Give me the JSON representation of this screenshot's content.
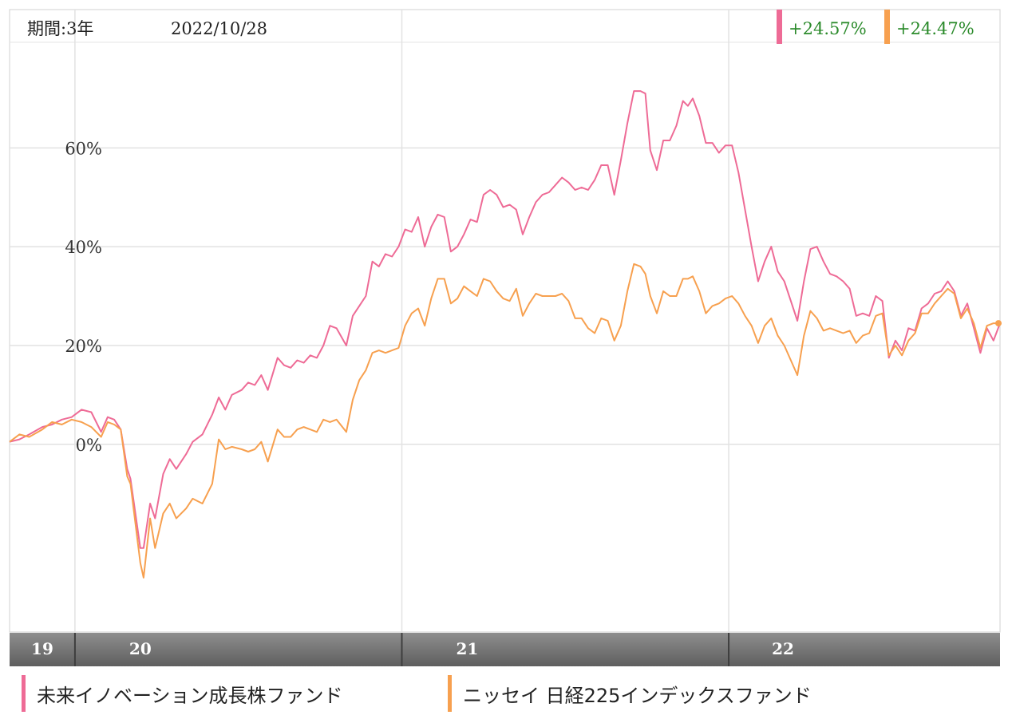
{
  "header": {
    "period": "期間:3年",
    "date": "2022/10/28",
    "returns": [
      {
        "label": "+24.57%",
        "swatch": "#ee6b96"
      },
      {
        "label": "+24.47%",
        "swatch": "#f7a04f"
      }
    ],
    "return_text_color": "#2a8a2a"
  },
  "legend": [
    {
      "label": "未来イノベーション成長株ファンド",
      "color": "#ee6b96"
    },
    {
      "label": "ニッセイ 日経225インデックスファンド",
      "color": "#f7a04f"
    }
  ],
  "chart_data": {
    "type": "line",
    "yticks": [
      {
        "value": 60,
        "label": "60%"
      },
      {
        "value": 40,
        "label": "40%"
      },
      {
        "value": 20,
        "label": "20%"
      },
      {
        "value": 0,
        "label": "0%"
      }
    ],
    "ylim": [
      -38,
      88
    ],
    "xlim": [
      2019.8,
      2022.83
    ],
    "xbands": [
      {
        "label": "19",
        "start": 2019.8,
        "end": 2020.0
      },
      {
        "label": "20",
        "start": 2020.0,
        "end": 2021.0
      },
      {
        "label": "21",
        "start": 2021.0,
        "end": 2022.0
      },
      {
        "label": "22",
        "start": 2022.0,
        "end": 2022.83
      }
    ],
    "grid": true,
    "series": [
      {
        "color": "#ee6b96",
        "points": [
          [
            2019.8,
            0.5
          ],
          [
            2019.83,
            1.0
          ],
          [
            2019.86,
            2.0
          ],
          [
            2019.9,
            3.5
          ],
          [
            2019.93,
            4.0
          ],
          [
            2019.96,
            5.0
          ],
          [
            2019.99,
            5.5
          ],
          [
            2020.02,
            7.0
          ],
          [
            2020.05,
            6.5
          ],
          [
            2020.08,
            2.5
          ],
          [
            2020.1,
            5.5
          ],
          [
            2020.12,
            5.0
          ],
          [
            2020.14,
            3.0
          ],
          [
            2020.16,
            -5.0
          ],
          [
            2020.17,
            -7.0
          ],
          [
            2020.2,
            -21.0
          ],
          [
            2020.21,
            -21.0
          ],
          [
            2020.23,
            -12.0
          ],
          [
            2020.245,
            -15.0
          ],
          [
            2020.27,
            -6.0
          ],
          [
            2020.29,
            -3.0
          ],
          [
            2020.31,
            -5.0
          ],
          [
            2020.34,
            -2.0
          ],
          [
            2020.36,
            0.5
          ],
          [
            2020.39,
            2.0
          ],
          [
            2020.42,
            6.0
          ],
          [
            2020.44,
            9.5
          ],
          [
            2020.46,
            7.0
          ],
          [
            2020.48,
            10.0
          ],
          [
            2020.51,
            11.0
          ],
          [
            2020.53,
            12.5
          ],
          [
            2020.55,
            12.0
          ],
          [
            2020.57,
            14.0
          ],
          [
            2020.59,
            11.0
          ],
          [
            2020.62,
            17.5
          ],
          [
            2020.64,
            16.0
          ],
          [
            2020.66,
            15.5
          ],
          [
            2020.68,
            17.0
          ],
          [
            2020.7,
            16.5
          ],
          [
            2020.72,
            18.0
          ],
          [
            2020.74,
            17.5
          ],
          [
            2020.76,
            20.0
          ],
          [
            2020.78,
            24.0
          ],
          [
            2020.8,
            23.5
          ],
          [
            2020.83,
            20.0
          ],
          [
            2020.85,
            26.0
          ],
          [
            2020.87,
            28.0
          ],
          [
            2020.89,
            30.0
          ],
          [
            2020.91,
            37.0
          ],
          [
            2020.93,
            36.0
          ],
          [
            2020.95,
            38.5
          ],
          [
            2020.97,
            38.0
          ],
          [
            2020.99,
            40.0
          ],
          [
            2021.01,
            43.5
          ],
          [
            2021.03,
            43.0
          ],
          [
            2021.05,
            46.0
          ],
          [
            2021.07,
            40.0
          ],
          [
            2021.09,
            44.0
          ],
          [
            2021.11,
            46.5
          ],
          [
            2021.13,
            46.0
          ],
          [
            2021.15,
            39.0
          ],
          [
            2021.17,
            40.0
          ],
          [
            2021.19,
            42.5
          ],
          [
            2021.21,
            45.5
          ],
          [
            2021.23,
            45.0
          ],
          [
            2021.25,
            50.5
          ],
          [
            2021.27,
            51.5
          ],
          [
            2021.29,
            50.5
          ],
          [
            2021.31,
            48.0
          ],
          [
            2021.33,
            48.5
          ],
          [
            2021.35,
            47.5
          ],
          [
            2021.37,
            42.5
          ],
          [
            2021.39,
            46.0
          ],
          [
            2021.41,
            49.0
          ],
          [
            2021.43,
            50.5
          ],
          [
            2021.45,
            51.0
          ],
          [
            2021.47,
            52.5
          ],
          [
            2021.49,
            54.0
          ],
          [
            2021.51,
            53.0
          ],
          [
            2021.53,
            51.5
          ],
          [
            2021.55,
            52.0
          ],
          [
            2021.57,
            51.5
          ],
          [
            2021.59,
            53.5
          ],
          [
            2021.61,
            56.5
          ],
          [
            2021.63,
            56.5
          ],
          [
            2021.65,
            50.5
          ],
          [
            2021.67,
            57.5
          ],
          [
            2021.69,
            65.0
          ],
          [
            2021.71,
            71.5
          ],
          [
            2021.73,
            71.5
          ],
          [
            2021.745,
            71.0
          ],
          [
            2021.76,
            59.5
          ],
          [
            2021.78,
            55.5
          ],
          [
            2021.8,
            61.5
          ],
          [
            2021.82,
            61.5
          ],
          [
            2021.84,
            64.5
          ],
          [
            2021.86,
            69.5
          ],
          [
            2021.875,
            68.5
          ],
          [
            2021.89,
            70.0
          ],
          [
            2021.91,
            66.5
          ],
          [
            2021.93,
            61.0
          ],
          [
            2021.95,
            61.0
          ],
          [
            2021.97,
            59.0
          ],
          [
            2021.99,
            60.5
          ],
          [
            2022.01,
            60.5
          ],
          [
            2022.03,
            55.0
          ],
          [
            2022.05,
            47.5
          ],
          [
            2022.07,
            40.0
          ],
          [
            2022.09,
            33.0
          ],
          [
            2022.11,
            37.0
          ],
          [
            2022.13,
            40.0
          ],
          [
            2022.15,
            35.0
          ],
          [
            2022.17,
            33.0
          ],
          [
            2022.19,
            29.0
          ],
          [
            2022.21,
            25.0
          ],
          [
            2022.23,
            33.0
          ],
          [
            2022.25,
            39.5
          ],
          [
            2022.27,
            40.0
          ],
          [
            2022.29,
            37.0
          ],
          [
            2022.31,
            34.5
          ],
          [
            2022.33,
            34.0
          ],
          [
            2022.35,
            33.0
          ],
          [
            2022.37,
            31.5
          ],
          [
            2022.39,
            26.0
          ],
          [
            2022.41,
            26.5
          ],
          [
            2022.43,
            26.0
          ],
          [
            2022.45,
            30.0
          ],
          [
            2022.47,
            29.0
          ],
          [
            2022.49,
            17.5
          ],
          [
            2022.51,
            21.0
          ],
          [
            2022.53,
            19.0
          ],
          [
            2022.55,
            23.5
          ],
          [
            2022.57,
            23.0
          ],
          [
            2022.59,
            27.5
          ],
          [
            2022.61,
            28.5
          ],
          [
            2022.63,
            30.5
          ],
          [
            2022.65,
            31.0
          ],
          [
            2022.67,
            33.0
          ],
          [
            2022.69,
            31.0
          ],
          [
            2022.71,
            26.0
          ],
          [
            2022.73,
            28.5
          ],
          [
            2022.75,
            23.5
          ],
          [
            2022.77,
            18.5
          ],
          [
            2022.79,
            23.5
          ],
          [
            2022.81,
            21.0
          ],
          [
            2022.83,
            24.5
          ]
        ]
      },
      {
        "color": "#f7a04f",
        "points": [
          [
            2019.8,
            0.5
          ],
          [
            2019.83,
            2.0
          ],
          [
            2019.86,
            1.5
          ],
          [
            2019.9,
            3.0
          ],
          [
            2019.93,
            4.5
          ],
          [
            2019.96,
            4.0
          ],
          [
            2019.99,
            5.0
          ],
          [
            2020.02,
            4.5
          ],
          [
            2020.05,
            3.5
          ],
          [
            2020.08,
            1.5
          ],
          [
            2020.1,
            4.5
          ],
          [
            2020.12,
            4.0
          ],
          [
            2020.14,
            3.0
          ],
          [
            2020.16,
            -6.5
          ],
          [
            2020.17,
            -8.0
          ],
          [
            2020.2,
            -24.0
          ],
          [
            2020.21,
            -27.0
          ],
          [
            2020.23,
            -15.0
          ],
          [
            2020.245,
            -21.0
          ],
          [
            2020.27,
            -14.0
          ],
          [
            2020.29,
            -12.0
          ],
          [
            2020.31,
            -15.0
          ],
          [
            2020.34,
            -13.0
          ],
          [
            2020.36,
            -11.0
          ],
          [
            2020.39,
            -12.0
          ],
          [
            2020.42,
            -8.0
          ],
          [
            2020.44,
            1.0
          ],
          [
            2020.46,
            -1.0
          ],
          [
            2020.48,
            -0.5
          ],
          [
            2020.51,
            -1.0
          ],
          [
            2020.53,
            -1.5
          ],
          [
            2020.55,
            -1.0
          ],
          [
            2020.57,
            0.5
          ],
          [
            2020.59,
            -3.5
          ],
          [
            2020.62,
            3.0
          ],
          [
            2020.64,
            1.5
          ],
          [
            2020.66,
            1.5
          ],
          [
            2020.68,
            3.0
          ],
          [
            2020.7,
            3.5
          ],
          [
            2020.72,
            3.0
          ],
          [
            2020.74,
            2.5
          ],
          [
            2020.76,
            5.0
          ],
          [
            2020.78,
            4.5
          ],
          [
            2020.8,
            5.0
          ],
          [
            2020.83,
            2.5
          ],
          [
            2020.85,
            9.0
          ],
          [
            2020.87,
            13.0
          ],
          [
            2020.89,
            15.0
          ],
          [
            2020.91,
            18.5
          ],
          [
            2020.93,
            19.0
          ],
          [
            2020.95,
            18.5
          ],
          [
            2020.97,
            19.0
          ],
          [
            2020.99,
            19.5
          ],
          [
            2021.01,
            24.0
          ],
          [
            2021.03,
            26.5
          ],
          [
            2021.05,
            27.5
          ],
          [
            2021.07,
            24.0
          ],
          [
            2021.09,
            29.5
          ],
          [
            2021.11,
            33.5
          ],
          [
            2021.13,
            33.5
          ],
          [
            2021.15,
            28.5
          ],
          [
            2021.17,
            29.5
          ],
          [
            2021.19,
            32.0
          ],
          [
            2021.21,
            31.0
          ],
          [
            2021.23,
            30.0
          ],
          [
            2021.25,
            33.5
          ],
          [
            2021.27,
            33.0
          ],
          [
            2021.29,
            31.0
          ],
          [
            2021.31,
            29.5
          ],
          [
            2021.33,
            29.0
          ],
          [
            2021.35,
            31.5
          ],
          [
            2021.37,
            26.0
          ],
          [
            2021.39,
            28.5
          ],
          [
            2021.41,
            30.5
          ],
          [
            2021.43,
            30.0
          ],
          [
            2021.45,
            30.0
          ],
          [
            2021.47,
            30.0
          ],
          [
            2021.49,
            30.5
          ],
          [
            2021.51,
            29.0
          ],
          [
            2021.53,
            25.5
          ],
          [
            2021.55,
            25.5
          ],
          [
            2021.57,
            23.5
          ],
          [
            2021.59,
            22.5
          ],
          [
            2021.61,
            25.5
          ],
          [
            2021.63,
            25.0
          ],
          [
            2021.65,
            21.0
          ],
          [
            2021.67,
            24.0
          ],
          [
            2021.69,
            31.0
          ],
          [
            2021.71,
            36.5
          ],
          [
            2021.73,
            36.0
          ],
          [
            2021.745,
            34.5
          ],
          [
            2021.76,
            30.0
          ],
          [
            2021.78,
            26.5
          ],
          [
            2021.8,
            31.0
          ],
          [
            2021.82,
            30.0
          ],
          [
            2021.84,
            30.0
          ],
          [
            2021.86,
            33.5
          ],
          [
            2021.875,
            33.5
          ],
          [
            2021.89,
            34.0
          ],
          [
            2021.91,
            31.0
          ],
          [
            2021.93,
            26.5
          ],
          [
            2021.95,
            28.0
          ],
          [
            2021.97,
            28.5
          ],
          [
            2021.99,
            29.5
          ],
          [
            2022.01,
            30.0
          ],
          [
            2022.03,
            28.5
          ],
          [
            2022.05,
            26.0
          ],
          [
            2022.07,
            24.0
          ],
          [
            2022.09,
            20.5
          ],
          [
            2022.11,
            24.0
          ],
          [
            2022.13,
            25.5
          ],
          [
            2022.15,
            22.0
          ],
          [
            2022.17,
            20.0
          ],
          [
            2022.19,
            17.0
          ],
          [
            2022.21,
            14.0
          ],
          [
            2022.23,
            22.0
          ],
          [
            2022.25,
            27.0
          ],
          [
            2022.27,
            25.5
          ],
          [
            2022.29,
            23.0
          ],
          [
            2022.31,
            23.5
          ],
          [
            2022.33,
            23.0
          ],
          [
            2022.35,
            22.5
          ],
          [
            2022.37,
            23.0
          ],
          [
            2022.39,
            20.5
          ],
          [
            2022.41,
            22.0
          ],
          [
            2022.43,
            22.5
          ],
          [
            2022.45,
            26.0
          ],
          [
            2022.47,
            26.5
          ],
          [
            2022.49,
            18.0
          ],
          [
            2022.51,
            20.0
          ],
          [
            2022.53,
            18.0
          ],
          [
            2022.55,
            21.0
          ],
          [
            2022.57,
            22.5
          ],
          [
            2022.59,
            26.5
          ],
          [
            2022.61,
            26.5
          ],
          [
            2022.63,
            28.5
          ],
          [
            2022.65,
            30.0
          ],
          [
            2022.67,
            31.5
          ],
          [
            2022.69,
            30.5
          ],
          [
            2022.71,
            25.5
          ],
          [
            2022.73,
            27.5
          ],
          [
            2022.75,
            24.5
          ],
          [
            2022.77,
            19.5
          ],
          [
            2022.79,
            24.0
          ],
          [
            2022.81,
            24.5
          ],
          [
            2022.83,
            24.5
          ]
        ]
      }
    ]
  }
}
